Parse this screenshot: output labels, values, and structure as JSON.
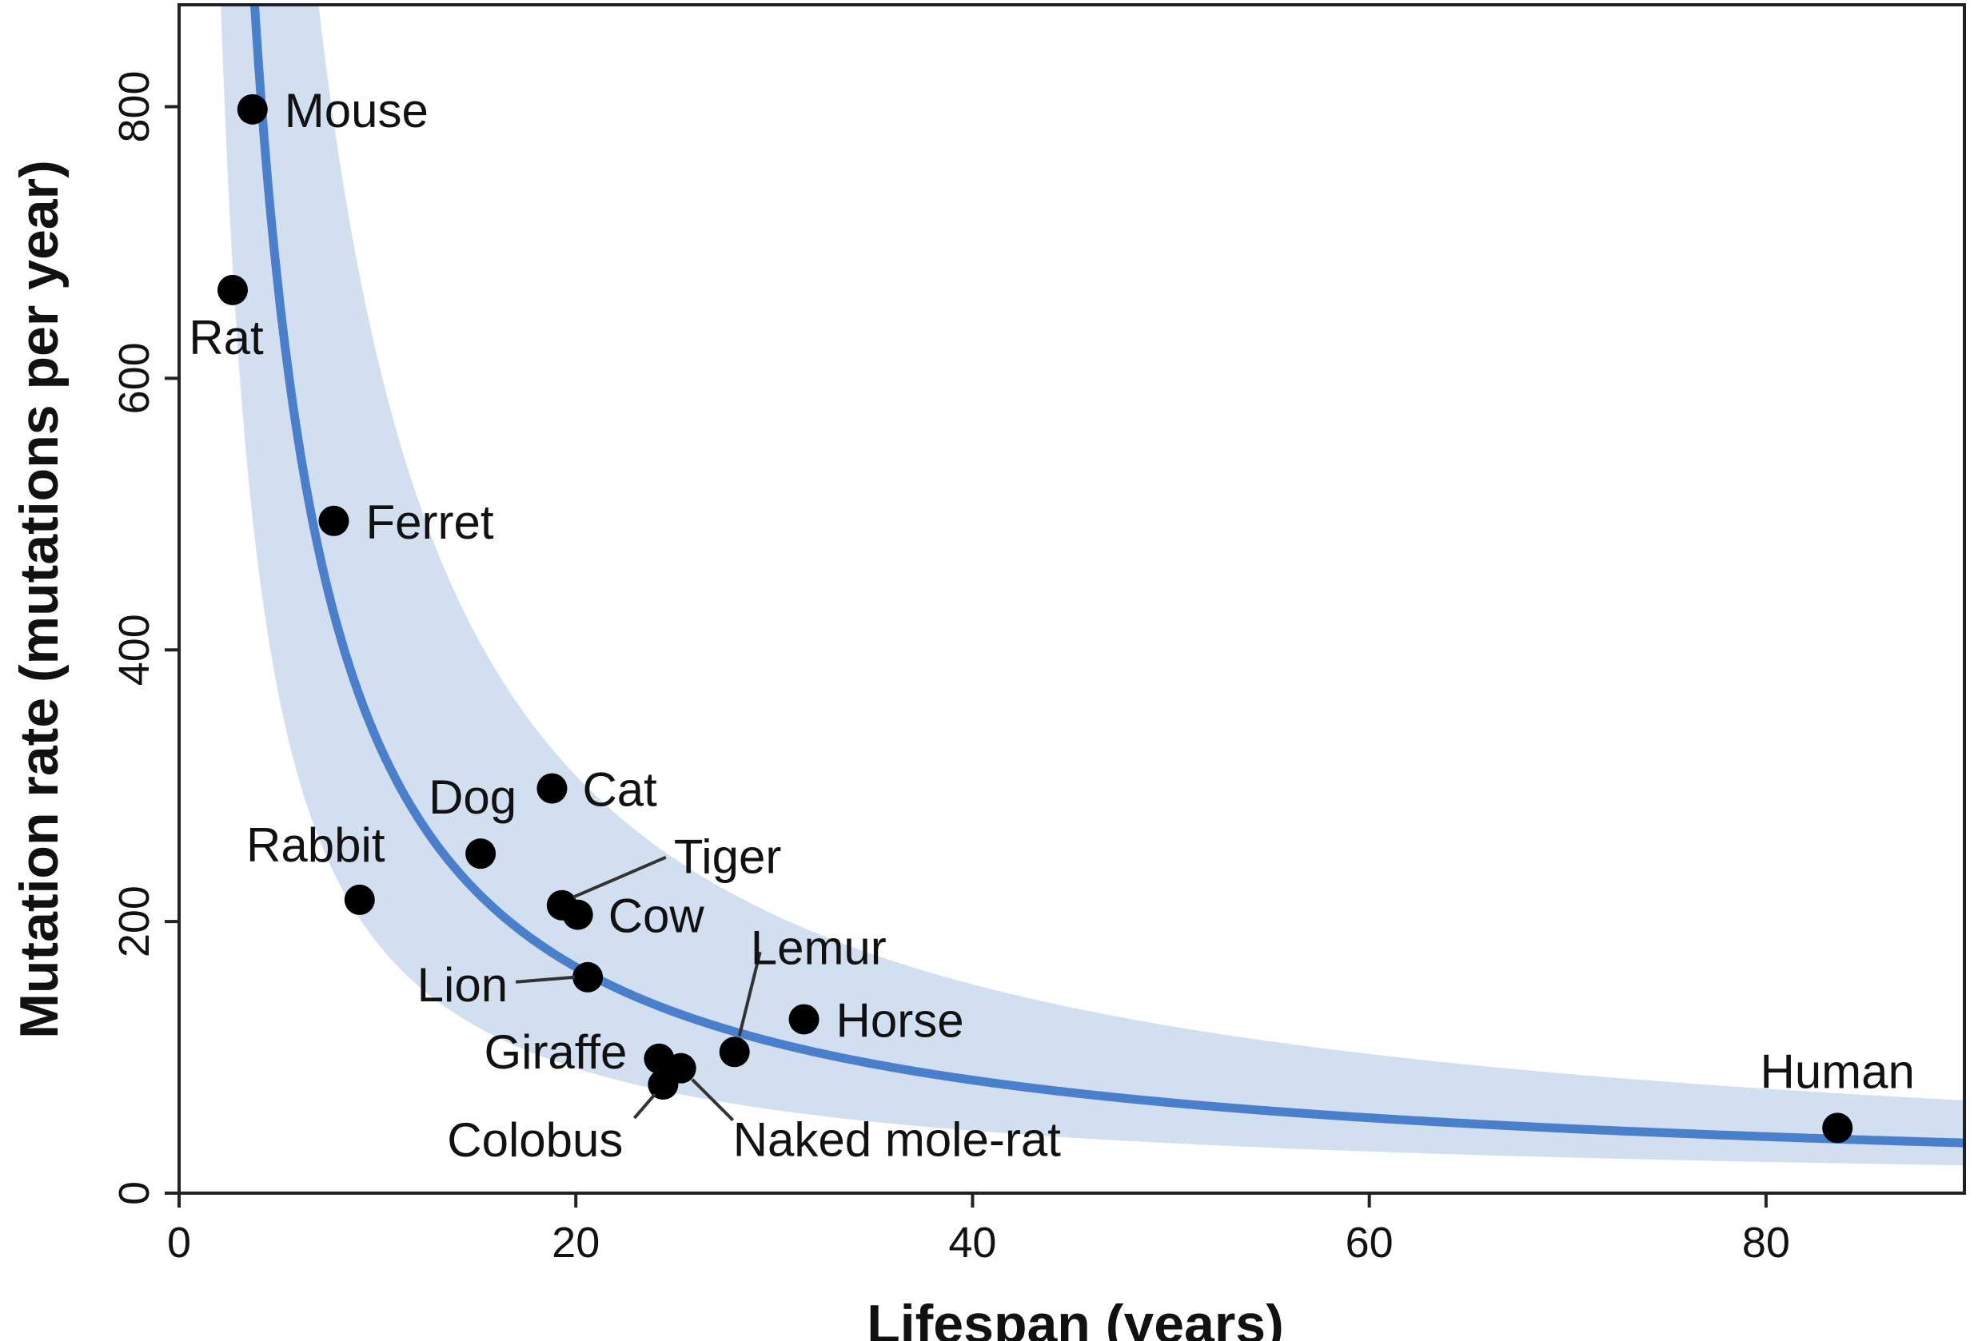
{
  "chart_data": {
    "type": "scatter",
    "xlabel": "Lifespan (years)",
    "ylabel": "Mutation rate (mutations per year)",
    "xlim": [
      0,
      90
    ],
    "ylim": [
      0,
      875
    ],
    "xticks": [
      "0",
      "20",
      "40",
      "60",
      "80"
    ],
    "yticks": [
      "0",
      "200",
      "400",
      "600",
      "800"
    ],
    "grid": false,
    "colors": {
      "fit_line": "#4a7fcb",
      "band": "#d2dff0",
      "points": "#000000"
    },
    "fit": {
      "form": "y = k / x",
      "k": 3330
    },
    "band": {
      "lower_k": 1840,
      "upper_k": 6150
    },
    "points": [
      {
        "label": "Mouse",
        "x": 3.7,
        "y": 798
      },
      {
        "label": "Rat",
        "x": 2.7,
        "y": 665
      },
      {
        "label": "Ferret",
        "x": 7.8,
        "y": 495
      },
      {
        "label": "Rabbit",
        "x": 9.1,
        "y": 216
      },
      {
        "label": "Dog",
        "x": 15.2,
        "y": 250
      },
      {
        "label": "Cat",
        "x": 18.8,
        "y": 298
      },
      {
        "label": "Tiger",
        "x": 19.3,
        "y": 212
      },
      {
        "label": "Cow",
        "x": 20.1,
        "y": 205
      },
      {
        "label": "Lion",
        "x": 20.6,
        "y": 159
      },
      {
        "label": "Lemur",
        "x": 28.0,
        "y": 104
      },
      {
        "label": "Horse",
        "x": 31.5,
        "y": 128
      },
      {
        "label": "Giraffe",
        "x": 24.2,
        "y": 99
      },
      {
        "label": "Naked mole-rat",
        "x": 25.3,
        "y": 92
      },
      {
        "label": "Colobus",
        "x": 24.4,
        "y": 80
      },
      {
        "label": "Human",
        "x": 83.6,
        "y": 48
      }
    ]
  }
}
